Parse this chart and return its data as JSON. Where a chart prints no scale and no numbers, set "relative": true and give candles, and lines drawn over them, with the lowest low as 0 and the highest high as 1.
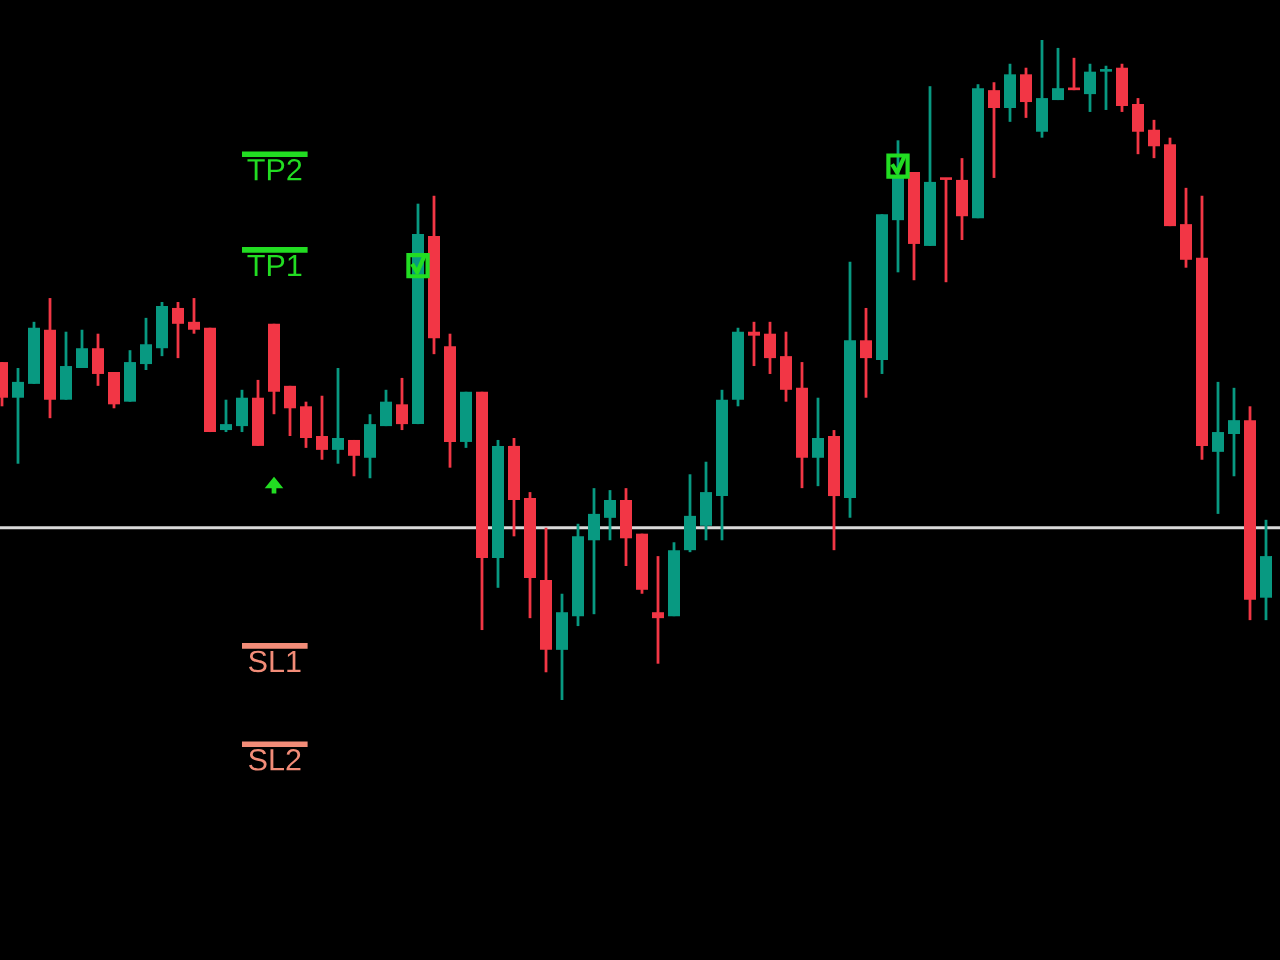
{
  "chart_data": {
    "type": "candlestick",
    "relative": true,
    "categories": [
      null,
      null,
      null,
      null,
      null,
      null,
      null,
      null,
      null,
      null,
      null,
      null,
      null,
      null,
      null,
      null,
      null,
      null,
      null,
      null,
      null,
      null,
      null,
      null,
      null,
      null,
      null,
      null,
      null,
      null,
      null,
      null,
      null,
      null,
      null,
      null,
      null,
      null,
      null,
      null,
      null,
      null,
      null,
      null,
      null,
      null,
      null,
      null,
      null,
      null,
      null,
      null,
      null,
      null,
      null,
      null,
      null,
      null,
      null,
      null,
      null,
      null,
      null,
      null,
      null,
      null,
      null,
      null,
      null,
      null,
      null,
      null,
      null,
      null,
      null,
      null,
      null,
      null,
      null,
      null
    ],
    "ohlc": [
      [
        0.512,
        0.512,
        0.445,
        0.458
      ],
      [
        0.458,
        0.503,
        0.358,
        0.482
      ],
      [
        0.479,
        0.573,
        0.479,
        0.564
      ],
      [
        0.561,
        0.609,
        0.427,
        0.455
      ],
      [
        0.455,
        0.558,
        0.455,
        0.506
      ],
      [
        0.503,
        0.561,
        0.503,
        0.533
      ],
      [
        0.533,
        0.555,
        0.476,
        0.494
      ],
      [
        0.497,
        0.497,
        0.442,
        0.448
      ],
      [
        0.452,
        0.53,
        0.452,
        0.512
      ],
      [
        0.509,
        0.579,
        0.5,
        0.539
      ],
      [
        0.533,
        0.603,
        0.521,
        0.597
      ],
      [
        0.594,
        0.603,
        0.518,
        0.57
      ],
      [
        0.573,
        0.609,
        0.555,
        0.561
      ],
      [
        0.564,
        0.564,
        0.406,
        0.406
      ],
      [
        0.409,
        0.455,
        0.406,
        0.418
      ],
      [
        0.415,
        0.47,
        0.406,
        0.458
      ],
      [
        0.458,
        0.485,
        0.385,
        0.385
      ],
      [
        0.57,
        0.57,
        0.433,
        0.467
      ],
      [
        0.476,
        0.476,
        0.4,
        0.442
      ],
      [
        0.445,
        0.452,
        0.382,
        0.397
      ],
      [
        0.4,
        0.461,
        0.364,
        0.379
      ],
      [
        0.379,
        0.503,
        0.358,
        0.397
      ],
      [
        0.394,
        0.394,
        0.339,
        0.37
      ],
      [
        0.367,
        0.433,
        0.336,
        0.418
      ],
      [
        0.415,
        0.47,
        0.415,
        0.452
      ],
      [
        0.448,
        0.488,
        0.409,
        0.418
      ],
      [
        0.418,
        0.752,
        0.418,
        0.706
      ],
      [
        0.703,
        0.764,
        0.524,
        0.548
      ],
      [
        0.536,
        0.555,
        0.352,
        0.391
      ],
      [
        0.391,
        0.467,
        0.382,
        0.467
      ],
      [
        0.467,
        0.467,
        0.106,
        0.215
      ],
      [
        0.215,
        0.394,
        0.17,
        0.385
      ],
      [
        0.385,
        0.397,
        0.248,
        0.303
      ],
      [
        0.306,
        0.315,
        0.124,
        0.185
      ],
      [
        0.182,
        0.261,
        0.042,
        0.076
      ],
      [
        0.076,
        0.161,
        0.0,
        0.133
      ],
      [
        0.127,
        0.267,
        0.112,
        0.248
      ],
      [
        0.242,
        0.321,
        0.13,
        0.282
      ],
      [
        0.276,
        0.318,
        0.242,
        0.303
      ],
      [
        0.303,
        0.321,
        0.203,
        0.245
      ],
      [
        0.252,
        0.252,
        0.161,
        0.167
      ],
      [
        0.133,
        0.218,
        0.055,
        0.124
      ],
      [
        0.127,
        0.239,
        0.127,
        0.227
      ],
      [
        0.227,
        0.342,
        0.224,
        0.279
      ],
      [
        0.264,
        0.361,
        0.242,
        0.315
      ],
      [
        0.309,
        0.47,
        0.242,
        0.455
      ],
      [
        0.455,
        0.564,
        0.445,
        0.558
      ],
      [
        0.558,
        0.573,
        0.506,
        0.552
      ],
      [
        0.555,
        0.573,
        0.494,
        0.518
      ],
      [
        0.521,
        0.558,
        0.452,
        0.47
      ],
      [
        0.473,
        0.512,
        0.321,
        0.367
      ],
      [
        0.367,
        0.458,
        0.324,
        0.397
      ],
      [
        0.4,
        0.409,
        0.227,
        0.309
      ],
      [
        0.306,
        0.664,
        0.276,
        0.545
      ],
      [
        0.545,
        0.594,
        0.458,
        0.518
      ],
      [
        0.515,
        0.736,
        0.494,
        0.736
      ],
      [
        0.727,
        0.848,
        0.648,
        0.791
      ],
      [
        0.8,
        0.8,
        0.636,
        0.691
      ],
      [
        0.688,
        0.93,
        0.688,
        0.785
      ],
      [
        0.791,
        0.791,
        0.633,
        0.788
      ],
      [
        0.788,
        0.821,
        0.697,
        0.733
      ],
      [
        0.73,
        0.933,
        0.73,
        0.927
      ],
      [
        0.924,
        0.936,
        0.791,
        0.897
      ],
      [
        0.897,
        0.964,
        0.876,
        0.948
      ],
      [
        0.948,
        0.958,
        0.882,
        0.906
      ],
      [
        0.861,
        1.0,
        0.852,
        0.912
      ],
      [
        0.909,
        0.988,
        0.909,
        0.927
      ],
      [
        0.927,
        0.973,
        0.924,
        0.924
      ],
      [
        0.918,
        0.964,
        0.891,
        0.952
      ],
      [
        0.952,
        0.961,
        0.894,
        0.955
      ],
      [
        0.958,
        0.964,
        0.891,
        0.9
      ],
      [
        0.903,
        0.912,
        0.827,
        0.861
      ],
      [
        0.864,
        0.879,
        0.821,
        0.839
      ],
      [
        0.842,
        0.852,
        0.718,
        0.718
      ],
      [
        0.721,
        0.776,
        0.655,
        0.667
      ],
      [
        0.67,
        0.764,
        0.364,
        0.385
      ],
      [
        0.376,
        0.482,
        0.282,
        0.406
      ],
      [
        0.403,
        0.473,
        0.339,
        0.424
      ],
      [
        0.424,
        0.445,
        0.121,
        0.152
      ],
      [
        0.155,
        0.273,
        0.121,
        0.218
      ]
    ],
    "colors": [
      "#f23645",
      "#089981",
      "#089981",
      "#f23645",
      "#089981",
      "#089981",
      "#f23645",
      "#f23645",
      "#089981",
      "#089981",
      "#089981",
      "#f23645",
      "#f23645",
      "#f23645",
      "#089981",
      "#089981",
      "#f23645",
      "#f23645",
      "#f23645",
      "#f23645",
      "#f23645",
      "#089981",
      "#f23645",
      "#089981",
      "#089981",
      "#f23645",
      "#089981",
      "#f23645",
      "#f23645",
      "#089981",
      "#f23645",
      "#089981",
      "#f23645",
      "#f23645",
      "#f23645",
      "#089981",
      "#089981",
      "#089981",
      "#089981",
      "#f23645",
      "#f23645",
      "#f23645",
      "#089981",
      "#089981",
      "#089981",
      "#089981",
      "#089981",
      "#f23645",
      "#f23645",
      "#f23645",
      "#f23645",
      "#089981",
      "#f23645",
      "#089981",
      "#f23645",
      "#089981",
      "#089981",
      "#f23645",
      "#089981",
      "#f23645",
      "#f23645",
      "#089981",
      "#f23645",
      "#089981",
      "#f23645",
      "#089981",
      "#089981",
      "#f23645",
      "#089981",
      "#089981",
      "#f23645",
      "#f23645",
      "#f23645",
      "#f23645",
      "#f23645",
      "#f23645",
      "#089981",
      "#089981",
      "#f23645",
      "#089981"
    ],
    "ref_lines": [
      {
        "axis": "y",
        "value": 0.827,
        "label": "TP2",
        "color": "#22dd22"
      },
      {
        "axis": "y",
        "value": 0.682,
        "label": "TP1",
        "color": "#22dd22"
      },
      {
        "axis": "y",
        "value": 0.261,
        "label": null,
        "color": "#d9d9d9"
      },
      {
        "axis": "y",
        "value": 0.082,
        "label": "SL1",
        "color": "#f28c78"
      },
      {
        "axis": "y",
        "value": -0.067,
        "label": "SL2",
        "color": "#f28c78"
      }
    ],
    "grid": false,
    "legend": false
  }
}
